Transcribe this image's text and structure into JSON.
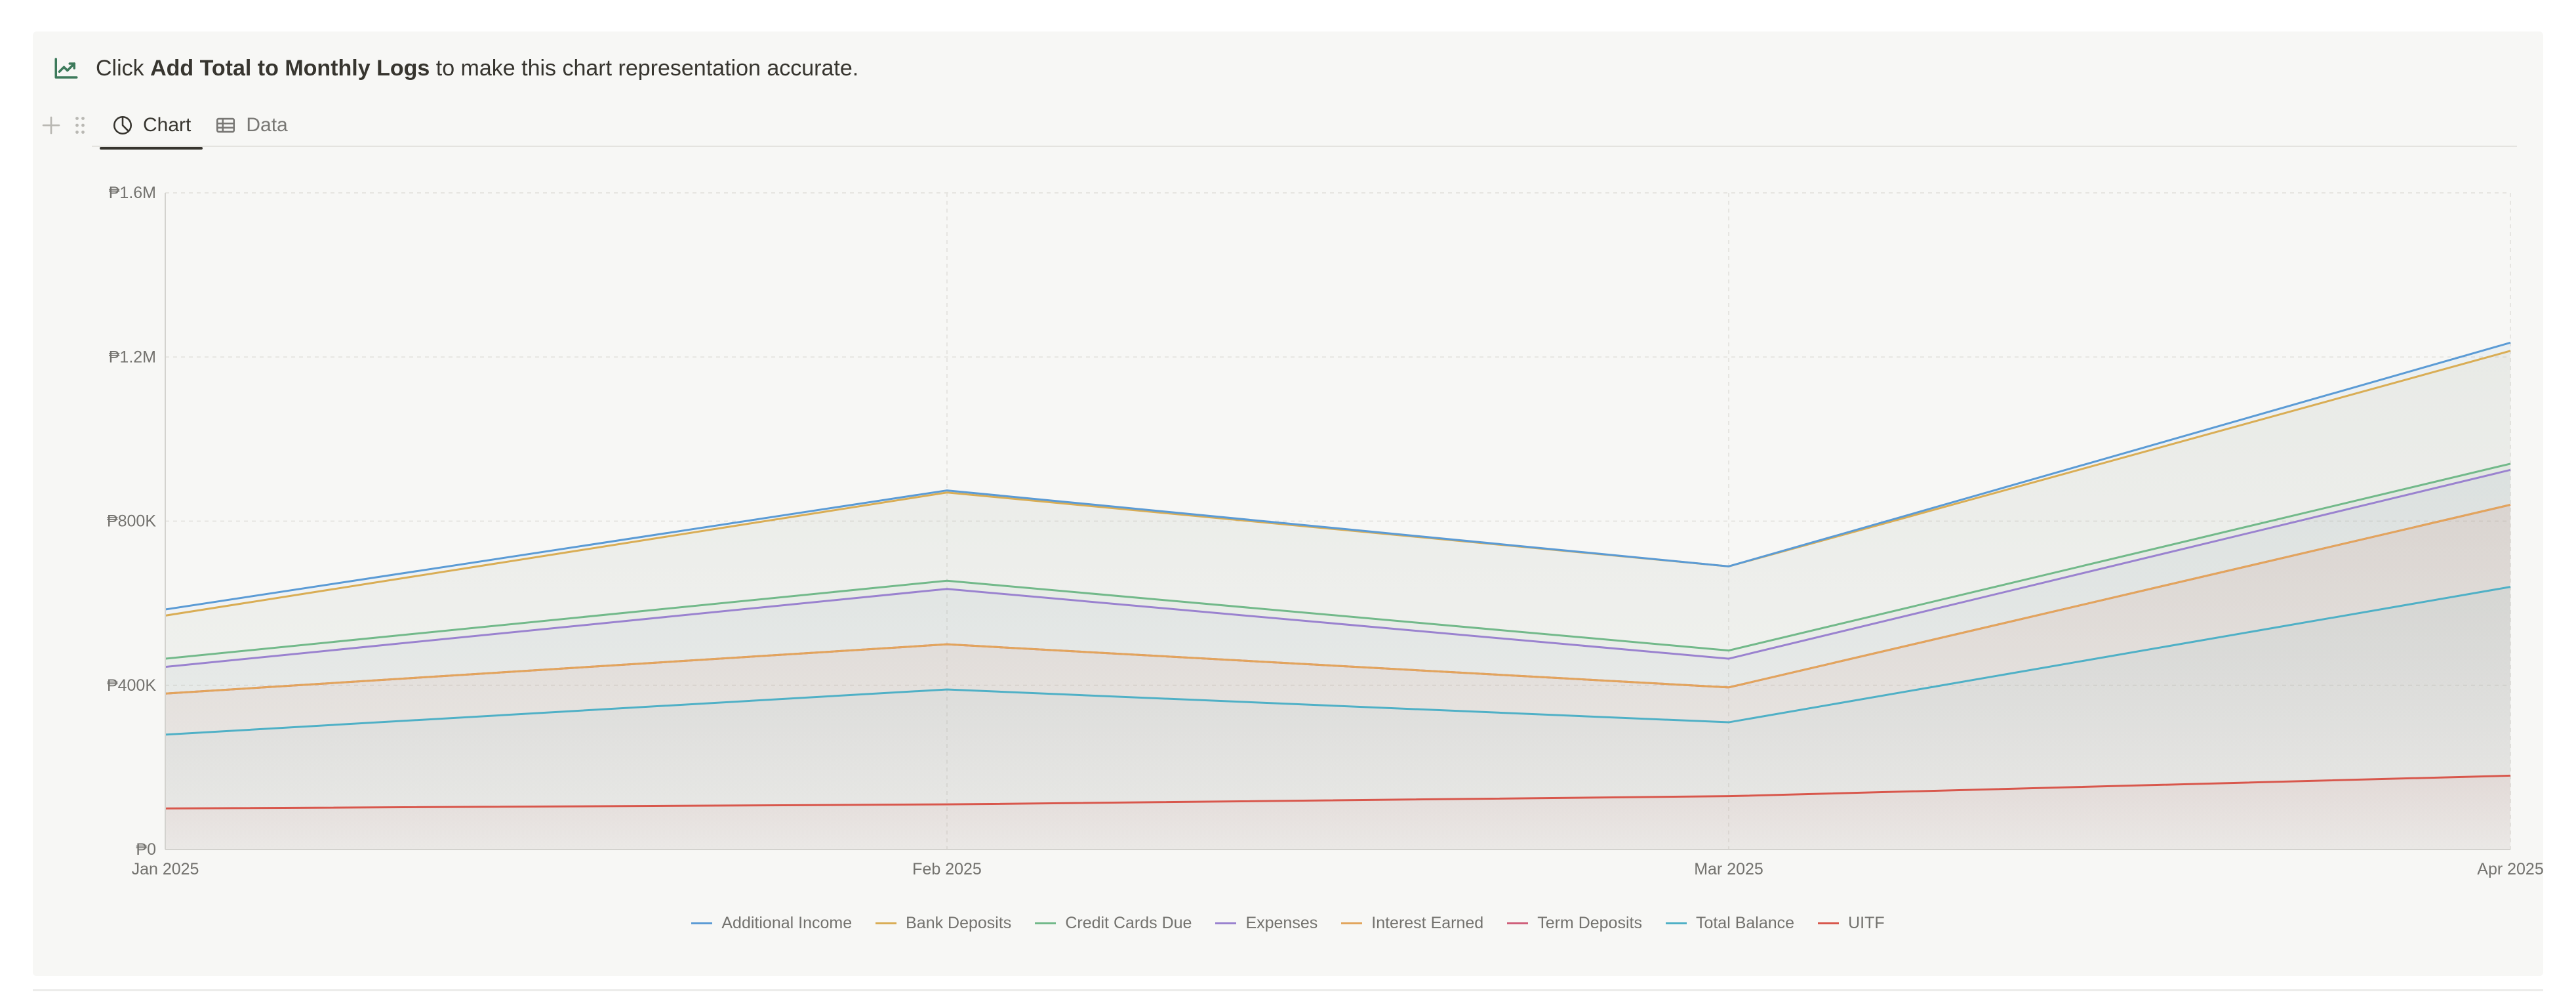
{
  "notice": {
    "prefix": "Click ",
    "action": "Add Total to Monthly Logs",
    "suffix": " to make this chart representation accurate."
  },
  "tabs": [
    {
      "label": "Chart",
      "icon": "pie-chart-icon",
      "active": true
    },
    {
      "label": "Data",
      "icon": "table-icon",
      "active": false
    }
  ],
  "chart_data": {
    "type": "area",
    "title": "",
    "xlabel": "",
    "ylabel": "",
    "categories": [
      "Jan 2025",
      "Feb 2025",
      "Mar 2025",
      "Apr 2025"
    ],
    "ylim": [
      0,
      1600000
    ],
    "yticks": [
      0,
      400000,
      800000,
      1200000,
      1600000
    ],
    "ytick_labels": [
      "₱0",
      "₱400K",
      "₱800K",
      "₱1.2M",
      "₱1.6M"
    ],
    "grid": true,
    "legend_position": "bottom-center",
    "series": [
      {
        "name": "Additional Income",
        "color": "#5b9bd5",
        "values": [
          585000,
          875000,
          690000,
          1235000
        ]
      },
      {
        "name": "Bank Deposits",
        "color": "#d9ad55",
        "values": [
          570000,
          870000,
          690000,
          1215000
        ]
      },
      {
        "name": "Credit Cards Due",
        "color": "#72b98a",
        "values": [
          465000,
          655000,
          485000,
          940000
        ]
      },
      {
        "name": "Expenses",
        "color": "#9a82cf",
        "values": [
          445000,
          635000,
          465000,
          925000
        ]
      },
      {
        "name": "Interest Earned",
        "color": "#e2a55c",
        "values": [
          380000,
          500000,
          395000,
          840000
        ]
      },
      {
        "name": "Term Deposits",
        "color": "#cf5f7a",
        "values": [
          380000,
          500000,
          395000,
          840000
        ]
      },
      {
        "name": "Total Balance",
        "color": "#4fb0c6",
        "values": [
          280000,
          390000,
          310000,
          640000
        ]
      },
      {
        "name": "UITF",
        "color": "#d8574c",
        "values": [
          100000,
          110000,
          130000,
          180000
        ]
      }
    ]
  }
}
